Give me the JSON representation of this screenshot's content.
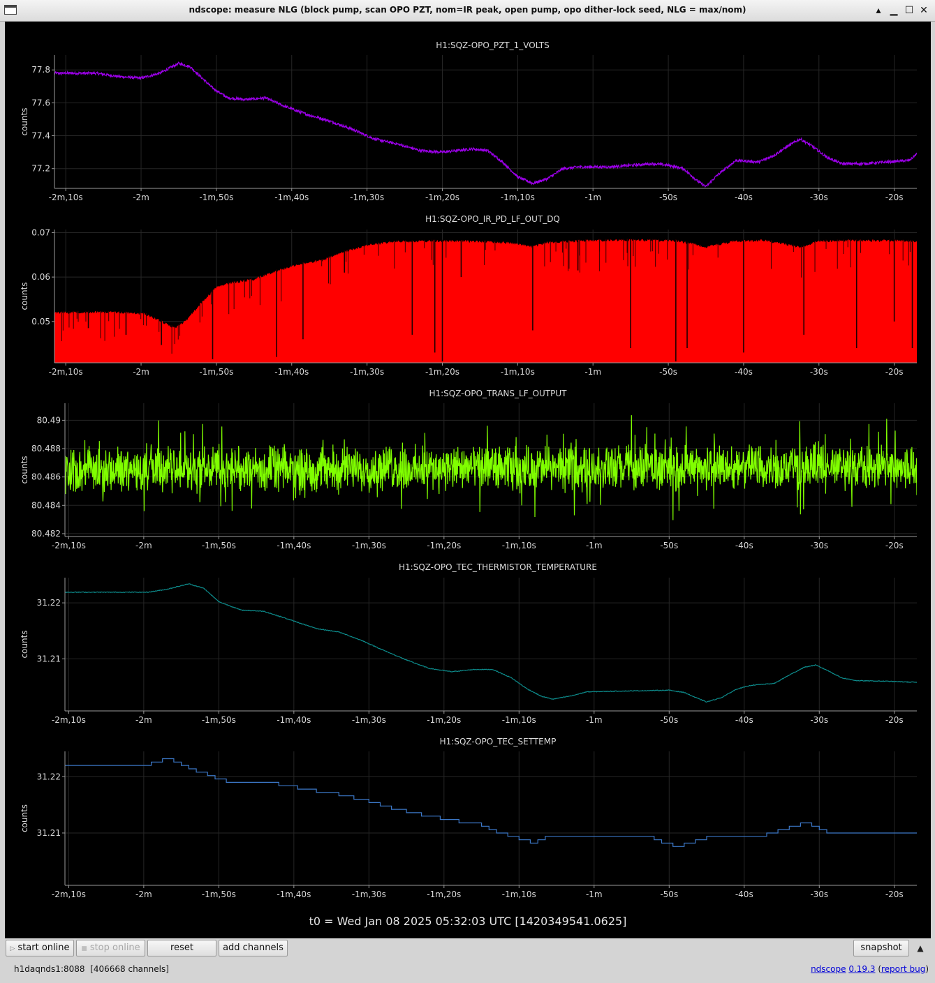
{
  "window": {
    "title": "ndscope: measure NLG (block pump, scan OPO PZT, nom=IR peak, open pump, opo dither-lock seed, NLG = max/nom)",
    "minimize_glyph": "▁",
    "maximize_glyph": "☐",
    "close_glyph": "✕",
    "shade_glyph": "▴"
  },
  "t0_label": "t0 = Wed Jan 08 2025 05:32:03 UTC [1420349541.0625]",
  "time_ticks": [
    {
      "t": -130,
      "label": "-2m,10s"
    },
    {
      "t": -120,
      "label": "-2m"
    },
    {
      "t": -110,
      "label": "-1m,50s"
    },
    {
      "t": -100,
      "label": "-1m,40s"
    },
    {
      "t": -90,
      "label": "-1m,30s"
    },
    {
      "t": -80,
      "label": "-1m,20s"
    },
    {
      "t": -70,
      "label": "-1m,10s"
    },
    {
      "t": -60,
      "label": "-1m"
    },
    {
      "t": -50,
      "label": "-50s"
    },
    {
      "t": -40,
      "label": "-40s"
    },
    {
      "t": -30,
      "label": "-30s"
    },
    {
      "t": -20,
      "label": "-20s"
    }
  ],
  "buttons": {
    "start_online": "start online",
    "stop_online": "stop online",
    "reset": "reset",
    "add_channels": "add channels",
    "snapshot": "snapshot"
  },
  "status": {
    "server": "h1daqnds1:8088",
    "channels": "[406668 channels]"
  },
  "footer": {
    "app_link": "ndscope",
    "version_link": "0.19.3",
    "report_link": "report bug"
  },
  "chart_data": [
    {
      "type": "line",
      "title": "H1:SQZ-OPO_PZT_1_VOLTS",
      "ylabel": "counts",
      "color": "#9b00e8",
      "xlim": [
        -131.5,
        -17
      ],
      "ylim": [
        77.08,
        77.89
      ],
      "yticks": [
        {
          "v": 77.2,
          "label": "77.2"
        },
        {
          "v": 77.4,
          "label": "77.4"
        },
        {
          "v": 77.6,
          "label": "77.6"
        },
        {
          "v": 77.8,
          "label": "77.8"
        }
      ],
      "noise": 0.008,
      "points": [
        [
          -131.5,
          77.78
        ],
        [
          -126,
          77.78
        ],
        [
          -123,
          77.76
        ],
        [
          -120,
          77.75
        ],
        [
          -117.5,
          77.78
        ],
        [
          -115,
          77.84
        ],
        [
          -113.5,
          77.82
        ],
        [
          -110.5,
          77.69
        ],
        [
          -108.5,
          77.63
        ],
        [
          -106,
          77.62
        ],
        [
          -103.5,
          77.63
        ],
        [
          -101,
          77.58
        ],
        [
          -98,
          77.53
        ],
        [
          -95,
          77.49
        ],
        [
          -92,
          77.44
        ],
        [
          -89,
          77.38
        ],
        [
          -86,
          77.35
        ],
        [
          -83,
          77.31
        ],
        [
          -80,
          77.3
        ],
        [
          -78,
          77.31
        ],
        [
          -76,
          77.32
        ],
        [
          -74,
          77.31
        ],
        [
          -72,
          77.24
        ],
        [
          -70,
          77.15
        ],
        [
          -68,
          77.11
        ],
        [
          -66,
          77.14
        ],
        [
          -64,
          77.2
        ],
        [
          -62,
          77.21
        ],
        [
          -58,
          77.21
        ],
        [
          -55,
          77.22
        ],
        [
          -52,
          77.23
        ],
        [
          -50,
          77.22
        ],
        [
          -48,
          77.2
        ],
        [
          -46,
          77.12
        ],
        [
          -45,
          77.09
        ],
        [
          -43.5,
          77.16
        ],
        [
          -41,
          77.25
        ],
        [
          -38,
          77.24
        ],
        [
          -36,
          77.28
        ],
        [
          -34,
          77.34
        ],
        [
          -32.5,
          77.38
        ],
        [
          -31,
          77.34
        ],
        [
          -29,
          77.27
        ],
        [
          -27,
          77.23
        ],
        [
          -24,
          77.23
        ],
        [
          -21,
          77.24
        ],
        [
          -18,
          77.25
        ],
        [
          -17,
          77.29
        ]
      ]
    },
    {
      "type": "area",
      "title": "H1:SQZ-OPO_IR_PD_LF_OUT_DQ",
      "ylabel": "counts",
      "color": "#ff0000",
      "xlim": [
        -131.5,
        -17
      ],
      "ylim": [
        0.0407,
        0.0707
      ],
      "yticks": [
        {
          "v": 0.05,
          "label": "0.05"
        },
        {
          "v": 0.06,
          "label": "0.06"
        },
        {
          "v": 0.07,
          "label": "0.07"
        }
      ],
      "points": [
        [
          -131.5,
          0.0523
        ],
        [
          -126,
          0.0524
        ],
        [
          -122,
          0.0523
        ],
        [
          -119.5,
          0.052
        ],
        [
          -117.5,
          0.0505
        ],
        [
          -115.5,
          0.0488
        ],
        [
          -114,
          0.0506
        ],
        [
          -112,
          0.0545
        ],
        [
          -110,
          0.058
        ],
        [
          -108,
          0.059
        ],
        [
          -105,
          0.0598
        ],
        [
          -102,
          0.0617
        ],
        [
          -99,
          0.0632
        ],
        [
          -96,
          0.064
        ],
        [
          -93,
          0.066
        ],
        [
          -90,
          0.0675
        ],
        [
          -86,
          0.0683
        ],
        [
          -81,
          0.0684
        ],
        [
          -75,
          0.0683
        ],
        [
          -71,
          0.068
        ],
        [
          -68,
          0.0671
        ],
        [
          -66,
          0.0681
        ],
        [
          -61,
          0.0685
        ],
        [
          -55,
          0.0686
        ],
        [
          -49,
          0.0685
        ],
        [
          -45,
          0.0671
        ],
        [
          -41,
          0.0684
        ],
        [
          -37,
          0.0685
        ],
        [
          -35,
          0.0679
        ],
        [
          -32.5,
          0.067
        ],
        [
          -30,
          0.0684
        ],
        [
          -25,
          0.0685
        ],
        [
          -20,
          0.0685
        ],
        [
          -17,
          0.0683
        ]
      ],
      "dips": [
        [
          -127,
          0.0485
        ],
        [
          -122,
          0.047
        ],
        [
          -117.3,
          0.0447
        ],
        [
          -110.5,
          0.0415
        ],
        [
          -102,
          0.042
        ],
        [
          -98.5,
          0.046
        ],
        [
          -93,
          0.061
        ],
        [
          -84,
          0.047
        ],
        [
          -81,
          0.043
        ],
        [
          -80,
          0.041
        ],
        [
          -77.5,
          0.06
        ],
        [
          -68,
          0.048
        ],
        [
          -62,
          0.0615
        ],
        [
          -55,
          0.044
        ],
        [
          -49,
          0.041
        ],
        [
          -47.5,
          0.044
        ],
        [
          -40,
          0.043
        ],
        [
          -32,
          0.047
        ],
        [
          -25,
          0.044
        ],
        [
          -20,
          0.05
        ],
        [
          -17.6,
          0.044
        ]
      ]
    },
    {
      "type": "line",
      "title": "H1:SQZ-OPO_TRANS_LF_OUTPUT",
      "ylabel": "counts",
      "color": "#80ff00",
      "xlim": [
        -130.5,
        -17
      ],
      "ylim": [
        80.4818,
        80.4912
      ],
      "yticks": [
        {
          "v": 80.482,
          "label": "80.482"
        },
        {
          "v": 80.484,
          "label": "80.484"
        },
        {
          "v": 80.486,
          "label": "80.486"
        },
        {
          "v": 80.488,
          "label": "80.488"
        },
        {
          "v": 80.49,
          "label": "80.49"
        }
      ],
      "noise": 0.0011,
      "points": [
        [
          -130.5,
          80.4865
        ],
        [
          -17,
          80.4867
        ]
      ]
    },
    {
      "type": "line",
      "title": "H1:SQZ-OPO_TEC_THERMISTOR_TEMPERATURE",
      "ylabel": "counts",
      "color": "#0d8c8c",
      "xlim": [
        -130.5,
        -17
      ],
      "ylim": [
        31.2007,
        31.2245
      ],
      "yticks": [
        {
          "v": 31.21,
          "label": "31.21"
        },
        {
          "v": 31.22,
          "label": "31.22"
        }
      ],
      "noise": 6e-05,
      "points": [
        [
          -130.5,
          31.2219
        ],
        [
          -122,
          31.2219
        ],
        [
          -119.5,
          31.2219
        ],
        [
          -117,
          31.2224
        ],
        [
          -114,
          31.2234
        ],
        [
          -112,
          31.2226
        ],
        [
          -110,
          31.2202
        ],
        [
          -107,
          31.2187
        ],
        [
          -104,
          31.2185
        ],
        [
          -101,
          31.2172
        ],
        [
          -97,
          31.2154
        ],
        [
          -94,
          31.2148
        ],
        [
          -91,
          31.2133
        ],
        [
          -88,
          31.2115
        ],
        [
          -85,
          31.2098
        ],
        [
          -82,
          31.2083
        ],
        [
          -79,
          31.2077
        ],
        [
          -76,
          31.2081
        ],
        [
          -73.5,
          31.2081
        ],
        [
          -71,
          31.2066
        ],
        [
          -69,
          31.2047
        ],
        [
          -67,
          31.2033
        ],
        [
          -65.5,
          31.2028
        ],
        [
          -63,
          31.2034
        ],
        [
          -61,
          31.2041
        ],
        [
          -58,
          31.2042
        ],
        [
          -54,
          31.2043
        ],
        [
          -50,
          31.2044
        ],
        [
          -48,
          31.204
        ],
        [
          -46.5,
          31.2031
        ],
        [
          -45,
          31.2023
        ],
        [
          -43,
          31.2031
        ],
        [
          -41,
          31.2046
        ],
        [
          -39,
          31.2053
        ],
        [
          -36,
          31.2056
        ],
        [
          -34,
          31.2071
        ],
        [
          -32,
          31.2085
        ],
        [
          -30.5,
          31.2089
        ],
        [
          -29,
          31.208
        ],
        [
          -27,
          31.2066
        ],
        [
          -25,
          31.2061
        ],
        [
          -21,
          31.206
        ],
        [
          -17,
          31.2058
        ]
      ]
    },
    {
      "type": "line",
      "title": "H1:SQZ-OPO_TEC_SETTEMP",
      "ylabel": "counts",
      "color": "#3c78c8",
      "xlim": [
        -130.5,
        -17
      ],
      "ylim": [
        31.2007,
        31.2245
      ],
      "yticks": [
        {
          "v": 31.21,
          "label": "31.21"
        },
        {
          "v": 31.22,
          "label": "31.22"
        }
      ],
      "step": true,
      "points": [
        [
          -130.5,
          31.222
        ],
        [
          -119,
          31.222
        ],
        [
          -119,
          31.2226
        ],
        [
          -117.5,
          31.2226
        ],
        [
          -117.5,
          31.2232
        ],
        [
          -116,
          31.2232
        ],
        [
          -116,
          31.2226
        ],
        [
          -115,
          31.2226
        ],
        [
          -115,
          31.222
        ],
        [
          -114,
          31.222
        ],
        [
          -114,
          31.2214
        ],
        [
          -113,
          31.2214
        ],
        [
          -113,
          31.2208
        ],
        [
          -111.5,
          31.2208
        ],
        [
          -111.5,
          31.2202
        ],
        [
          -110.5,
          31.2202
        ],
        [
          -110.5,
          31.2196
        ],
        [
          -109,
          31.2196
        ],
        [
          -109,
          31.219
        ],
        [
          -102,
          31.219
        ],
        [
          -102,
          31.2184
        ],
        [
          -99.5,
          31.2184
        ],
        [
          -99.5,
          31.2178
        ],
        [
          -97,
          31.2178
        ],
        [
          -97,
          31.2172
        ],
        [
          -94,
          31.2172
        ],
        [
          -94,
          31.2166
        ],
        [
          -92,
          31.2166
        ],
        [
          -92,
          31.216
        ],
        [
          -90,
          31.216
        ],
        [
          -90,
          31.2154
        ],
        [
          -88.5,
          31.2154
        ],
        [
          -88.5,
          31.2148
        ],
        [
          -87,
          31.2148
        ],
        [
          -87,
          31.2142
        ],
        [
          -85,
          31.2142
        ],
        [
          -85,
          31.2136
        ],
        [
          -83,
          31.2136
        ],
        [
          -83,
          31.213
        ],
        [
          -80.5,
          31.213
        ],
        [
          -80.5,
          31.2124
        ],
        [
          -78,
          31.2124
        ],
        [
          -78,
          31.2118
        ],
        [
          -75,
          31.2118
        ],
        [
          -75,
          31.2112
        ],
        [
          -74,
          31.2112
        ],
        [
          -74,
          31.2106
        ],
        [
          -73,
          31.2106
        ],
        [
          -73,
          31.21
        ],
        [
          -71.5,
          31.21
        ],
        [
          -71.5,
          31.2094
        ],
        [
          -70,
          31.2094
        ],
        [
          -70,
          31.2088
        ],
        [
          -68.5,
          31.2088
        ],
        [
          -68.5,
          31.2082
        ],
        [
          -67.5,
          31.2082
        ],
        [
          -67.5,
          31.2088
        ],
        [
          -66.5,
          31.2088
        ],
        [
          -66.5,
          31.2094
        ],
        [
          -52,
          31.2094
        ],
        [
          -52,
          31.2088
        ],
        [
          -51,
          31.2088
        ],
        [
          -51,
          31.2082
        ],
        [
          -49.5,
          31.2082
        ],
        [
          -49.5,
          31.2076
        ],
        [
          -48,
          31.2076
        ],
        [
          -48,
          31.2082
        ],
        [
          -46.5,
          31.2082
        ],
        [
          -46.5,
          31.2088
        ],
        [
          -45,
          31.2088
        ],
        [
          -45,
          31.2094
        ],
        [
          -37,
          31.2094
        ],
        [
          -37,
          31.21
        ],
        [
          -35.5,
          31.21
        ],
        [
          -35.5,
          31.2106
        ],
        [
          -34,
          31.2106
        ],
        [
          -34,
          31.2112
        ],
        [
          -32.5,
          31.2112
        ],
        [
          -32.5,
          31.2118
        ],
        [
          -31,
          31.2118
        ],
        [
          -31,
          31.2112
        ],
        [
          -30,
          31.2112
        ],
        [
          -30,
          31.2106
        ],
        [
          -29,
          31.2106
        ],
        [
          -29,
          31.21
        ],
        [
          -17,
          31.21
        ]
      ]
    }
  ]
}
